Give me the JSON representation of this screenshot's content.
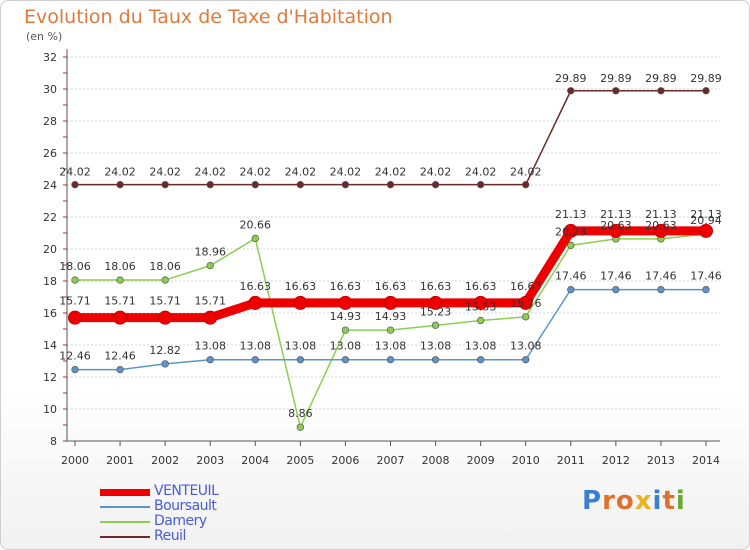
{
  "title": "Evolution du Taux de Taxe d'Habitation",
  "subtitle": "(en %)",
  "logo": {
    "text": "Proxiti",
    "colors": [
      "#3a7fd0",
      "#e0702c",
      "#e0702c",
      "#f0b020",
      "#3a7fd0",
      "#e0702c",
      "#6aaa30"
    ]
  },
  "chart_data": {
    "type": "line",
    "title": "Evolution du Taux de Taxe d'Habitation",
    "subtitle": "(en %)",
    "xlabel": "",
    "ylabel": "",
    "ylim": [
      8,
      32
    ],
    "yticks": [
      8,
      10,
      12,
      14,
      16,
      18,
      20,
      22,
      24,
      26,
      28,
      30,
      32
    ],
    "x": [
      "2000",
      "2001",
      "2002",
      "2003",
      "2004",
      "2005",
      "2006",
      "2007",
      "2008",
      "2009",
      "2010",
      "2011",
      "2012",
      "2013",
      "2014"
    ],
    "grid": "horizontal",
    "legend_position": "bottom-left",
    "series": [
      {
        "name": "Reuil",
        "color": "#6b2a2a",
        "values": [
          24.02,
          24.02,
          24.02,
          24.02,
          24.02,
          24.02,
          24.02,
          24.02,
          24.02,
          24.02,
          24.02,
          29.89,
          29.89,
          29.89,
          29.89
        ],
        "labels": [
          "24.02",
          "24.02",
          "24.02",
          "24.02",
          "24.02",
          "24.02",
          "24.02",
          "24.02",
          "24.02",
          "24.02",
          "24.02",
          "29.89",
          "29.89",
          "29.89",
          "29.89"
        ]
      },
      {
        "name": "Damery",
        "color": "#8dce50",
        "values": [
          18.06,
          18.06,
          18.06,
          18.96,
          20.66,
          8.86,
          14.93,
          14.93,
          15.23,
          15.53,
          15.76,
          20.23,
          20.63,
          20.63,
          20.94
        ],
        "labels": [
          "18.06",
          "18.06",
          "18.06",
          "18.96",
          "20.66",
          "8.86",
          "14.93",
          "14.93",
          "15.23",
          "15.53",
          "15.76",
          "20.23",
          "20.63",
          "20.63",
          "20.94"
        ]
      },
      {
        "name": "Boursault",
        "color": "#5b94cc",
        "values": [
          12.46,
          12.46,
          12.82,
          13.08,
          13.08,
          13.08,
          13.08,
          13.08,
          13.08,
          13.08,
          13.08,
          17.46,
          17.46,
          17.46,
          17.46
        ],
        "labels": [
          "12.46",
          "12.46",
          "12.82",
          "13.08",
          "13.08",
          "13.08",
          "13.08",
          "13.08",
          "13.08",
          "13.08",
          "13.08",
          "17.46",
          "17.46",
          "17.46",
          "17.46"
        ]
      },
      {
        "name": "VENTEUIL",
        "color": "#ee0000",
        "values": [
          15.71,
          15.71,
          15.71,
          15.71,
          16.63,
          16.63,
          16.63,
          16.63,
          16.63,
          16.63,
          16.63,
          21.13,
          21.13,
          21.13,
          21.13
        ],
        "labels": [
          "15.71",
          "15.71",
          "15.71",
          "15.71",
          "16.63",
          "16.63",
          "16.63",
          "16.63",
          "16.63",
          "16.63",
          "16.63",
          "21.13",
          "21.13",
          "21.13",
          "21.13"
        ]
      }
    ],
    "legend_order": [
      "VENTEUIL",
      "Boursault",
      "Damery",
      "Reuil"
    ]
  }
}
